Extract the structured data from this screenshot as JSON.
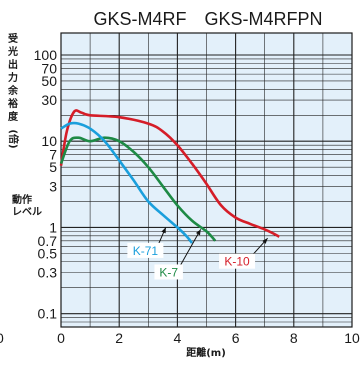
{
  "chart_data": {
    "type": "line",
    "title": "GKS-M4RF　GKS-M4RFPN",
    "ylabel": "受光出力余裕度(倍)",
    "ylabel_chars": [
      "受",
      "光",
      "出",
      "力",
      "余",
      "裕",
      "度",
      "(倍)"
    ],
    "threshold_label": [
      "動作",
      "レベル"
    ],
    "xlabel": "距離(m)",
    "y_scale": "log",
    "ylim": [
      0.07,
      180
    ],
    "xlim": [
      0,
      10
    ],
    "grid": true,
    "background": "#e3f0fa",
    "x_ticks": [
      0,
      2,
      4,
      6,
      8,
      10
    ],
    "y_ticks": [
      0.1,
      0.3,
      0.5,
      0.7,
      1,
      3,
      5,
      7,
      10,
      30,
      50,
      70,
      100
    ],
    "partial_left_tick": "0",
    "series": [
      {
        "name": "K-10",
        "color": "#d51d28",
        "x": [
          0,
          0.2,
          0.45,
          0.7,
          1.0,
          2.0,
          3.0,
          3.5,
          4.0,
          4.5,
          5.0,
          5.5,
          6.0,
          6.5,
          7.0,
          7.3,
          7.5
        ],
        "y": [
          5.2,
          13,
          22,
          21.5,
          20,
          19,
          16,
          13,
          9,
          5.5,
          3.2,
          1.8,
          1.3,
          1.1,
          0.95,
          0.85,
          0.78
        ]
      },
      {
        "name": "K-7",
        "color": "#1e8a45",
        "x": [
          0,
          0.3,
          0.6,
          1.0,
          1.5,
          2.0,
          2.5,
          3.0,
          3.5,
          4.0,
          4.5,
          5.0,
          5.3
        ],
        "y": [
          5.5,
          10,
          11,
          10,
          11,
          10,
          7.5,
          5,
          3,
          1.8,
          1.2,
          0.9,
          0.7
        ]
      },
      {
        "name": "K-71",
        "color": "#1a9fdc",
        "x": [
          0,
          0.3,
          0.6,
          1.0,
          1.5,
          2.0,
          2.5,
          3.0,
          3.5,
          4.0,
          4.3,
          4.5
        ],
        "y": [
          14,
          16,
          16,
          14,
          10,
          6,
          3.5,
          2.0,
          1.4,
          1.0,
          0.8,
          0.66
        ]
      }
    ],
    "annotations": [
      {
        "text": "K-71",
        "series": "K-71",
        "label_at": [
          2.9,
          0.48
        ],
        "arrow_to": [
          3.6,
          1.0
        ]
      },
      {
        "text": "K-7",
        "series": "K-7",
        "label_at": [
          3.7,
          0.27
        ],
        "arrow_to": [
          4.8,
          0.95
        ]
      },
      {
        "text": "K-10",
        "series": "K-10",
        "label_at": [
          6.05,
          0.36
        ],
        "arrow_to": [
          7.1,
          0.75
        ]
      }
    ]
  }
}
